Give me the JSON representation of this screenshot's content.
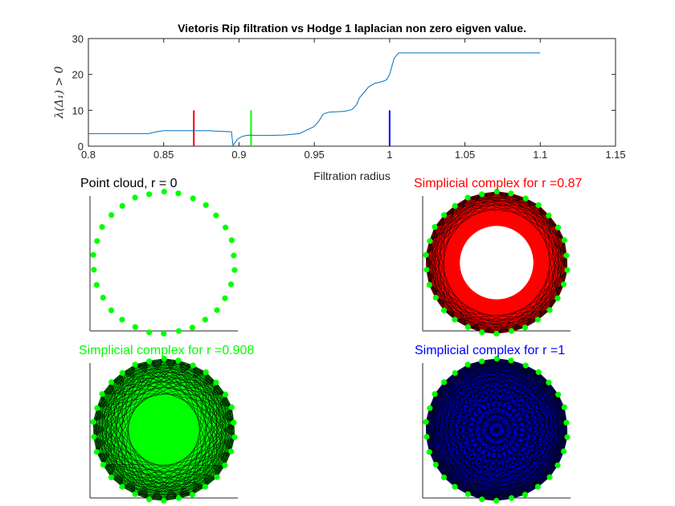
{
  "colors": {
    "line": "#0072BD",
    "red": "#ff0000",
    "green": "#00ff00",
    "blue": "#0000ff",
    "axis": "#262626",
    "edge": "#000000"
  },
  "chart_data": [
    {
      "type": "line",
      "title": "Vietoris Rip filtration vs Hodge 1 laplacian non zero eigven value.",
      "xlabel": "Filtration radius",
      "ylabel": "λ(Δ₁) > 0",
      "xlim": [
        0.8,
        1.15
      ],
      "ylim": [
        0,
        30
      ],
      "xticks": [
        "0.8",
        "0.85",
        "0.9",
        "0.95",
        "1",
        "1.05",
        "1.1",
        "1.15"
      ],
      "yticks": [
        "0",
        "10",
        "20",
        "30"
      ],
      "series": [
        {
          "x": [
            0.8,
            0.84,
            0.845,
            0.85,
            0.88,
            0.895,
            0.896,
            0.899,
            0.902,
            0.905,
            0.908,
            0.91,
            0.92,
            0.93,
            0.94,
            0.945,
            0.95,
            0.953,
            0.956,
            0.96,
            0.97,
            0.975,
            0.978,
            0.98,
            0.983,
            0.986,
            0.99,
            0.995,
            0.998,
            1.0,
            1.003,
            1.006,
            1.1
          ],
          "y": [
            3.5,
            3.5,
            4.0,
            4.3,
            4.3,
            4.0,
            0.2,
            2.0,
            2.7,
            3.0,
            3.1,
            3.0,
            3.0,
            3.1,
            3.5,
            4.5,
            5.5,
            7.0,
            9.0,
            9.5,
            9.7,
            10.2,
            11.5,
            13.5,
            15.0,
            16.5,
            17.5,
            18.0,
            18.5,
            20.0,
            24.5,
            26.0,
            26.0
          ]
        }
      ],
      "markers": [
        {
          "x": 0.87,
          "y0": 0,
          "y1": 10,
          "color": "#ff0000"
        },
        {
          "x": 0.908,
          "y0": 0,
          "y1": 10,
          "color": "#00ff00"
        },
        {
          "x": 1.0,
          "y0": 0,
          "y1": 10,
          "color": "#0000ff"
        }
      ]
    },
    {
      "type": "scatter",
      "title": "Point cloud, r = 0",
      "title_color": "#000000",
      "points": 30,
      "radius": 0
    },
    {
      "type": "scatter",
      "title": "Simplicial complex for r =0.87",
      "title_color": "#ff0000",
      "points": 30,
      "radius": 0.87,
      "fill": "#ff0000"
    },
    {
      "type": "scatter",
      "title": "Simplicial complex for r =0.908",
      "title_color": "#00ff00",
      "points": 30,
      "radius": 0.908,
      "fill": "#00ff00"
    },
    {
      "type": "scatter",
      "title": "Simplicial complex for r =1",
      "title_color": "#0000ff",
      "points": 30,
      "radius": 1,
      "fill": "#0000ff"
    }
  ]
}
